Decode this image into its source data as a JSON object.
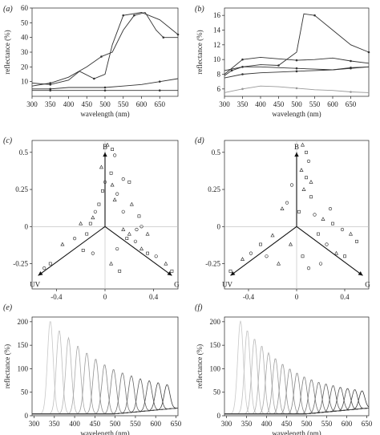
{
  "chart_data": [
    {
      "panel": "(a)",
      "type": "line",
      "xlabel": "wavelength (nm)",
      "ylabel": "reflectance (%)",
      "xlim": [
        300,
        700
      ],
      "ylim": [
        0,
        60
      ],
      "xticks": [
        300,
        350,
        400,
        450,
        500,
        550,
        600,
        650
      ],
      "yticks": [
        10,
        20,
        30,
        40,
        50,
        60
      ],
      "series": [
        {
          "color": "#333333",
          "x": [
            300,
            350,
            400,
            450,
            490,
            520,
            550,
            580,
            610,
            640,
            660,
            700
          ],
          "y": [
            7,
            9,
            13,
            20,
            27,
            30,
            45,
            55,
            57,
            45,
            40,
            40
          ]
        },
        {
          "color": "#333333",
          "x": [
            300,
            350,
            400,
            430,
            470,
            500,
            520,
            550,
            600,
            650,
            700
          ],
          "y": [
            9,
            8,
            11,
            17,
            12,
            15,
            35,
            55,
            57,
            52,
            42
          ]
        },
        {
          "color": "#333333",
          "x": [
            300,
            350,
            400,
            450,
            500,
            550,
            600,
            650,
            700
          ],
          "y": [
            5,
            5,
            6,
            6,
            6,
            7,
            8,
            10,
            12
          ]
        },
        {
          "color": "#333333",
          "x": [
            300,
            350,
            400,
            450,
            500,
            550,
            600,
            650,
            700
          ],
          "y": [
            4,
            4,
            4,
            4,
            4,
            4,
            4,
            4,
            4
          ]
        }
      ]
    },
    {
      "panel": "(b)",
      "type": "line",
      "xlabel": "wavelength (nm)",
      "ylabel": "reflectance (%)",
      "xlim": [
        300,
        700
      ],
      "ylim": [
        5,
        17
      ],
      "xticks": [
        300,
        350,
        400,
        450,
        500,
        550,
        600,
        650
      ],
      "yticks": [
        6,
        8,
        10,
        12,
        14,
        16
      ],
      "series": [
        {
          "color": "#333333",
          "x": [
            300,
            320,
            350,
            400,
            450,
            500,
            520,
            550,
            600,
            650,
            700
          ],
          "y": [
            7.8,
            8.5,
            9.0,
            9.3,
            9.2,
            11,
            16.2,
            16,
            14,
            12,
            11
          ]
        },
        {
          "color": "#333333",
          "x": [
            300,
            350,
            400,
            450,
            500,
            550,
            600,
            650,
            700
          ],
          "y": [
            8,
            10,
            10.3,
            10.1,
            9.9,
            10.0,
            10.2,
            9.8,
            9.5
          ]
        },
        {
          "color": "#333333",
          "x": [
            300,
            350,
            400,
            450,
            500,
            550,
            600,
            650,
            700
          ],
          "y": [
            8.5,
            9,
            9.0,
            8.9,
            8.8,
            8.7,
            8.6,
            8.8,
            9.0
          ]
        },
        {
          "color": "#333333",
          "x": [
            300,
            350,
            400,
            450,
            500,
            550,
            600,
            650,
            700
          ],
          "y": [
            7.5,
            8.0,
            8.2,
            8.3,
            8.4,
            8.5,
            8.6,
            8.9,
            9.0
          ]
        },
        {
          "color": "#999999",
          "x": [
            300,
            350,
            400,
            450,
            500,
            550,
            600,
            650,
            700
          ],
          "y": [
            5.5,
            6,
            6.4,
            6.3,
            6.1,
            5.9,
            5.8,
            5.6,
            5.5
          ]
        }
      ]
    },
    {
      "panel": "(c)",
      "type": "scatter",
      "axis_labels": {
        "B": "B",
        "UV": "UV",
        "G": "G"
      },
      "xlim": [
        -0.6,
        0.6
      ],
      "ylim": [
        -0.42,
        0.58
      ],
      "xticks": [
        -0.4,
        0,
        0.4
      ],
      "yticks": [
        0.5,
        0.25,
        0,
        -0.25
      ],
      "points": [
        [
          0.02,
          0.55
        ],
        [
          0.06,
          0.52
        ],
        [
          0.08,
          0.48
        ],
        [
          -0.03,
          0.4
        ],
        [
          0.05,
          0.36
        ],
        [
          0.0,
          0.3
        ],
        [
          0.06,
          0.28
        ],
        [
          -0.02,
          0.24
        ],
        [
          0.1,
          0.22
        ],
        [
          0.08,
          0.18
        ],
        [
          -0.05,
          0.15
        ],
        [
          -0.08,
          0.1
        ],
        [
          -0.1,
          0.06
        ],
        [
          -0.12,
          0.02
        ],
        [
          0.15,
          0.1
        ],
        [
          0.22,
          0.15
        ],
        [
          0.28,
          0.07
        ],
        [
          0.3,
          0.0
        ],
        [
          0.35,
          -0.05
        ],
        [
          0.18,
          -0.08
        ],
        [
          0.25,
          -0.1
        ],
        [
          0.3,
          -0.15
        ],
        [
          0.35,
          -0.18
        ],
        [
          0.42,
          -0.2
        ],
        [
          0.5,
          -0.25
        ],
        [
          0.55,
          -0.3
        ],
        [
          -0.25,
          -0.08
        ],
        [
          -0.35,
          -0.12
        ],
        [
          -0.45,
          -0.25
        ],
        [
          -0.5,
          -0.28
        ],
        [
          -0.2,
          0.02
        ],
        [
          -0.15,
          -0.05
        ],
        [
          0.1,
          -0.15
        ],
        [
          0.15,
          -0.02
        ],
        [
          0.2,
          0.3
        ],
        [
          0.15,
          0.32
        ],
        [
          0.05,
          -0.25
        ],
        [
          0.12,
          -0.3
        ],
        [
          -0.1,
          -0.18
        ],
        [
          0.2,
          -0.05
        ],
        [
          -0.18,
          -0.16
        ],
        [
          0.26,
          -0.02
        ]
      ]
    },
    {
      "panel": "(d)",
      "type": "scatter",
      "axis_labels": {
        "B": "B",
        "UV": "UV",
        "G": "G"
      },
      "xlim": [
        -0.6,
        0.6
      ],
      "ylim": [
        -0.42,
        0.58
      ],
      "xticks": [
        -0.4,
        0,
        0.4
      ],
      "yticks": [
        0.5,
        0.25,
        0,
        -0.25
      ],
      "points": [
        [
          0.05,
          0.55
        ],
        [
          0.08,
          0.5
        ],
        [
          0.1,
          0.44
        ],
        [
          0.04,
          0.38
        ],
        [
          0.08,
          0.33
        ],
        [
          -0.04,
          0.28
        ],
        [
          0.06,
          0.25
        ],
        [
          0.12,
          0.2
        ],
        [
          -0.08,
          0.16
        ],
        [
          -0.12,
          0.12
        ],
        [
          0.02,
          0.1
        ],
        [
          0.15,
          0.08
        ],
        [
          0.22,
          0.05
        ],
        [
          0.3,
          0.02
        ],
        [
          0.38,
          -0.02
        ],
        [
          0.45,
          -0.05
        ],
        [
          0.5,
          -0.1
        ],
        [
          0.25,
          -0.12
        ],
        [
          0.33,
          -0.18
        ],
        [
          0.4,
          -0.2
        ],
        [
          0.2,
          -0.25
        ],
        [
          -0.2,
          -0.06
        ],
        [
          -0.3,
          -0.12
        ],
        [
          -0.38,
          -0.18
        ],
        [
          -0.45,
          -0.22
        ],
        [
          -0.55,
          -0.3
        ],
        [
          -0.25,
          -0.2
        ],
        [
          -0.15,
          -0.25
        ],
        [
          0.05,
          -0.2
        ],
        [
          0.1,
          -0.28
        ],
        [
          -0.05,
          -0.12
        ],
        [
          0.18,
          -0.05
        ],
        [
          0.28,
          0.12
        ],
        [
          0.12,
          0.3
        ]
      ]
    },
    {
      "panel": "(e)",
      "type": "line",
      "xlabel": "wavelength (nm)",
      "ylabel": "reflectance (%)",
      "xlim": [
        295,
        655
      ],
      "ylim": [
        0,
        210
      ],
      "xticks": [
        300,
        350,
        400,
        450,
        500,
        550,
        600,
        650
      ],
      "yticks": [
        0,
        50,
        100,
        150,
        200
      ],
      "peaks": [
        {
          "center": 340,
          "height": 198
        },
        {
          "center": 362,
          "height": 178
        },
        {
          "center": 385,
          "height": 162
        },
        {
          "center": 408,
          "height": 145
        },
        {
          "center": 430,
          "height": 130
        },
        {
          "center": 452,
          "height": 117
        },
        {
          "center": 474,
          "height": 105
        },
        {
          "center": 496,
          "height": 95
        },
        {
          "center": 518,
          "height": 86
        },
        {
          "center": 540,
          "height": 78
        },
        {
          "center": 562,
          "height": 70
        },
        {
          "center": 584,
          "height": 64
        },
        {
          "center": 606,
          "height": 58
        },
        {
          "center": 628,
          "height": 52
        }
      ]
    },
    {
      "panel": "(f)",
      "type": "line",
      "xlabel": "wavelength (nm)",
      "ylabel": "reflectance (%)",
      "xlim": [
        295,
        655
      ],
      "ylim": [
        0,
        210
      ],
      "xticks": [
        300,
        350,
        400,
        450,
        500,
        550,
        600,
        650
      ],
      "yticks": [
        0,
        50,
        100,
        150,
        200
      ],
      "peaks": [
        {
          "center": 335,
          "height": 198
        },
        {
          "center": 352,
          "height": 178
        },
        {
          "center": 370,
          "height": 160
        },
        {
          "center": 388,
          "height": 145
        },
        {
          "center": 405,
          "height": 130
        },
        {
          "center": 422,
          "height": 118
        },
        {
          "center": 440,
          "height": 106
        },
        {
          "center": 458,
          "height": 96
        },
        {
          "center": 476,
          "height": 87
        },
        {
          "center": 494,
          "height": 79
        },
        {
          "center": 512,
          "height": 72
        },
        {
          "center": 530,
          "height": 65
        },
        {
          "center": 548,
          "height": 60
        },
        {
          "center": 566,
          "height": 55
        },
        {
          "center": 584,
          "height": 50
        },
        {
          "center": 602,
          "height": 46
        },
        {
          "center": 620,
          "height": 42
        },
        {
          "center": 638,
          "height": 38
        }
      ]
    }
  ],
  "panel_labels": [
    "(a)",
    "(b)",
    "(c)",
    "(d)",
    "(e)",
    "(f)"
  ]
}
